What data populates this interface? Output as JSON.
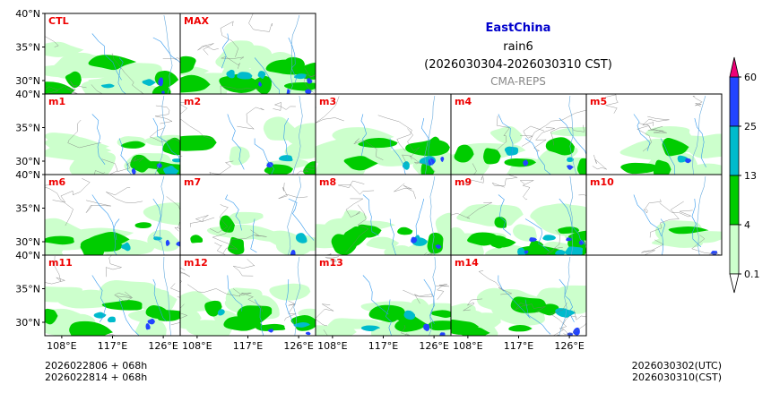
{
  "chart_data": {
    "type": "heatmap",
    "title": {
      "region": "EastChina",
      "variable": "rain6",
      "period": "(2026030304-2026030310 CST)",
      "model": "CMA-REPS"
    },
    "region_color": "#0000cc",
    "panels": [
      {
        "label": "CTL",
        "coverage": "moderate"
      },
      {
        "label": "MAX",
        "coverage": "extensive"
      },
      {
        "label": "m1",
        "coverage": "moderate"
      },
      {
        "label": "m2",
        "coverage": "light"
      },
      {
        "label": "m3",
        "coverage": "moderate"
      },
      {
        "label": "m4",
        "coverage": "moderate"
      },
      {
        "label": "m5",
        "coverage": "light"
      },
      {
        "label": "m6",
        "coverage": "moderate"
      },
      {
        "label": "m7",
        "coverage": "light"
      },
      {
        "label": "m8",
        "coverage": "moderate"
      },
      {
        "label": "m9",
        "coverage": "extensive"
      },
      {
        "label": "m10",
        "coverage": "sparse"
      },
      {
        "label": "m11",
        "coverage": "moderate"
      },
      {
        "label": "m12",
        "coverage": "moderate"
      },
      {
        "label": "m13",
        "coverage": "moderate"
      },
      {
        "label": "m14",
        "coverage": "moderate"
      }
    ],
    "x_ticks": [
      "108°E",
      "117°E",
      "126°E"
    ],
    "y_ticks": [
      "40°N",
      "35°N",
      "30°N"
    ],
    "xlim": [
      105,
      129
    ],
    "ylim": [
      28,
      40
    ],
    "colorbar": {
      "levels": [
        "0.1",
        "4",
        "13",
        "25",
        "60"
      ],
      "colors": [
        "#ccffcc",
        "#00cc00",
        "#00bbcc",
        "#2244ff",
        "#ee0077"
      ]
    },
    "footer": {
      "init_line1": "2026022806  +  068h",
      "init_line2": "2026022814  +  068h",
      "valid_utc": "2026030302(UTC)",
      "valid_cst": "2026030310(CST)"
    }
  }
}
